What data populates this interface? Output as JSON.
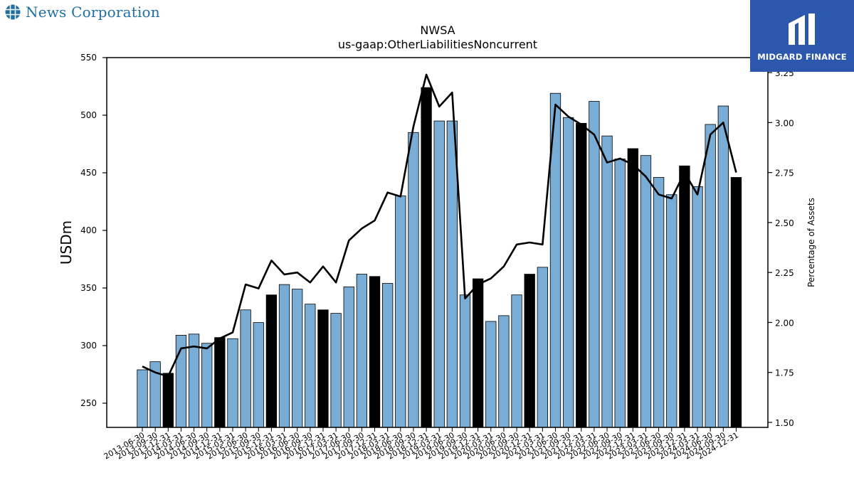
{
  "branding": {
    "left_logo_text": "News Corporation",
    "right_logo_text": "MIDGARD FINANCE",
    "right_logo_color": "#2b58ad"
  },
  "chart_data": {
    "type": "bar",
    "title": "NWSA",
    "subtitle": "us-gaap:OtherLiabilitiesNoncurrent",
    "ylabel": "USDm",
    "y2label": "Percentage of Assets",
    "ylim": [
      229,
      550
    ],
    "yticks": [
      250,
      300,
      350,
      400,
      450,
      500,
      550
    ],
    "y2lim": [
      1.475,
      3.325
    ],
    "y2ticks": [
      1.5,
      1.75,
      2.0,
      2.25,
      2.5,
      2.75,
      3.0,
      3.25
    ],
    "y2tick_labels": [
      "1.50",
      "1.75",
      "2.00",
      "2.25",
      "2.50",
      "2.75",
      "3.00",
      "3.25"
    ],
    "colors": {
      "bar_default": "#7aadd5",
      "bar_highlight": "#000000",
      "line": "#000000"
    },
    "categories": [
      "2013-06-30",
      "2013-09-30",
      "2013-12-31",
      "2014-03-31",
      "2014-06-30",
      "2014-09-30",
      "2014-12-31",
      "2015-03-31",
      "2015-06-30",
      "2015-09-30",
      "2015-12-31",
      "2016-03-31",
      "2016-06-30",
      "2016-09-30",
      "2016-12-31",
      "2017-03-31",
      "2017-06-30",
      "2017-09-30",
      "2017-12-31",
      "2018-03-31",
      "2018-06-30",
      "2018-09-30",
      "2018-12-31",
      "2019-03-31",
      "2019-06-30",
      "2019-09-30",
      "2019-12-31",
      "2020-03-31",
      "2020-06-30",
      "2020-09-30",
      "2020-12-31",
      "2021-03-31",
      "2021-06-30",
      "2021-09-30",
      "2021-12-31",
      "2022-03-31",
      "2022-06-30",
      "2022-09-30",
      "2022-12-31",
      "2023-03-31",
      "2023-06-30",
      "2023-09-30",
      "2023-12-31",
      "2024-03-31",
      "2024-06-30",
      "2024-09-30",
      "2024-12-31"
    ],
    "series": [
      {
        "type": "bar",
        "values": [
          279,
          286,
          276,
          309,
          310,
          302,
          307,
          306,
          331,
          320,
          344,
          353,
          349,
          336,
          331,
          328,
          351,
          362,
          360,
          354,
          430,
          485,
          524,
          495,
          495,
          344,
          358,
          321,
          326,
          344,
          362,
          368,
          519,
          498,
          493,
          512,
          482,
          462,
          471,
          465,
          446,
          431,
          456,
          438,
          492,
          508,
          446
        ],
        "highlight": [
          false,
          false,
          true,
          false,
          false,
          false,
          true,
          false,
          false,
          false,
          true,
          false,
          false,
          false,
          true,
          false,
          false,
          false,
          true,
          false,
          false,
          false,
          true,
          false,
          false,
          false,
          true,
          false,
          false,
          false,
          true,
          false,
          false,
          false,
          true,
          false,
          false,
          false,
          true,
          false,
          false,
          false,
          true,
          false,
          false,
          false,
          true
        ]
      },
      {
        "type": "line",
        "axis": "right",
        "values": [
          1.78,
          1.75,
          1.73,
          1.87,
          1.88,
          1.87,
          1.92,
          1.95,
          2.19,
          2.17,
          2.31,
          2.24,
          2.25,
          2.2,
          2.28,
          2.2,
          2.41,
          2.47,
          2.51,
          2.65,
          2.63,
          2.98,
          3.24,
          3.08,
          3.15,
          2.12,
          2.19,
          2.22,
          2.28,
          2.39,
          2.4,
          2.39,
          3.09,
          3.03,
          2.99,
          2.94,
          2.8,
          2.82,
          2.79,
          2.73,
          2.64,
          2.62,
          2.75,
          2.64,
          2.94,
          3.0,
          2.75
        ]
      }
    ]
  }
}
